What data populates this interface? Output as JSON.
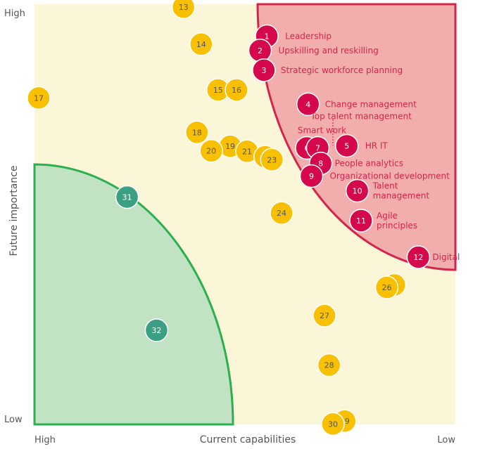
{
  "chart_data": {
    "type": "scatter",
    "xlabel": "Current capabilities",
    "ylabel": "Future importance",
    "x_ticks": {
      "left": "High",
      "right": "Low"
    },
    "y_ticks": {
      "top": "High",
      "bottom": "Low"
    },
    "xlim": [
      0,
      100
    ],
    "ylim": [
      0,
      100
    ],
    "colors": {
      "background": "#fbf6d8",
      "red_zone": "#f2adad",
      "red_border": "#d6234c",
      "green_zone": "#c1e2c3",
      "green_border": "#2bb04f",
      "red_point": "#d4084a",
      "yellow_point": "#f8c000",
      "green_point": "#3a9f83"
    },
    "points": [
      {
        "id": "1",
        "x": 55.2,
        "y": 92.4,
        "group": "red",
        "label": "Leadership"
      },
      {
        "id": "2",
        "x": 53.6,
        "y": 89.0,
        "group": "red",
        "label": "Upskilling and reskilling"
      },
      {
        "id": "3",
        "x": 54.5,
        "y": 84.3,
        "group": "red",
        "label": "Strategic workforce planning"
      },
      {
        "id": "4",
        "x": 65.0,
        "y": 76.2,
        "group": "red",
        "label": "Change management"
      },
      {
        "id": "5",
        "x": 74.2,
        "y": 66.3,
        "group": "red",
        "label": "HR IT"
      },
      {
        "id": "6",
        "x": 64.7,
        "y": 65.8,
        "group": "red",
        "label": ""
      },
      {
        "id": "7",
        "x": 67.3,
        "y": 65.8,
        "group": "red",
        "label": "Smart work"
      },
      {
        "id": "8",
        "x": 68.0,
        "y": 62.1,
        "group": "red",
        "label": "People analytics"
      },
      {
        "id": "9",
        "x": 65.8,
        "y": 59.1,
        "group": "red",
        "label": "Organizational development"
      },
      {
        "id": "10",
        "x": 76.7,
        "y": 55.6,
        "group": "red",
        "label": "Talent management"
      },
      {
        "id": "11",
        "x": 77.6,
        "y": 48.5,
        "group": "red",
        "label": "Agile principles"
      },
      {
        "id": "12",
        "x": 91.2,
        "y": 39.8,
        "group": "red",
        "label": "Digital"
      },
      {
        "id": "6b",
        "x": 67.3,
        "y": 65.8,
        "group": "none",
        "label": "Top talent management"
      },
      {
        "id": "13",
        "x": 35.4,
        "y": 99.3,
        "group": "yellow"
      },
      {
        "id": "14",
        "x": 39.6,
        "y": 90.5,
        "group": "yellow"
      },
      {
        "id": "15",
        "x": 43.6,
        "y": 79.6,
        "group": "yellow"
      },
      {
        "id": "16",
        "x": 48.0,
        "y": 79.6,
        "group": "yellow"
      },
      {
        "id": "17",
        "x": 1.0,
        "y": 77.7,
        "group": "yellow"
      },
      {
        "id": "18",
        "x": 38.6,
        "y": 69.5,
        "group": "yellow"
      },
      {
        "id": "19",
        "x": 46.5,
        "y": 66.2,
        "group": "yellow"
      },
      {
        "id": "20",
        "x": 42.0,
        "y": 65.1,
        "group": "yellow"
      },
      {
        "id": "21",
        "x": 50.5,
        "y": 65.0,
        "group": "yellow"
      },
      {
        "id": "22",
        "x": 54.8,
        "y": 63.7,
        "group": "yellow"
      },
      {
        "id": "23",
        "x": 56.4,
        "y": 63.0,
        "group": "yellow"
      },
      {
        "id": "24",
        "x": 58.7,
        "y": 50.3,
        "group": "yellow"
      },
      {
        "id": "25",
        "x": 85.5,
        "y": 33.2,
        "group": "yellow"
      },
      {
        "id": "26",
        "x": 83.7,
        "y": 32.6,
        "group": "yellow"
      },
      {
        "id": "27",
        "x": 68.9,
        "y": 25.9,
        "group": "yellow"
      },
      {
        "id": "28",
        "x": 70.0,
        "y": 14.1,
        "group": "yellow"
      },
      {
        "id": "29",
        "x": 73.7,
        "y": 0.8,
        "group": "yellow"
      },
      {
        "id": "30",
        "x": 70.9,
        "y": 0.1,
        "group": "yellow"
      },
      {
        "id": "31",
        "x": 22.0,
        "y": 54.1,
        "group": "green"
      },
      {
        "id": "32",
        "x": 29.0,
        "y": 22.4,
        "group": "green"
      }
    ]
  }
}
